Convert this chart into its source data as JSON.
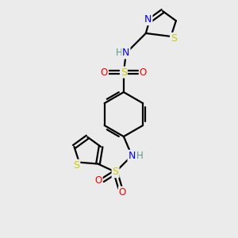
{
  "bg_color": "#ebebeb",
  "atom_colors": {
    "C": "#000000",
    "H": "#5a9a8a",
    "N": "#0000ff",
    "O": "#ff0000",
    "S": "#cccc00"
  },
  "bond_color": "#000000",
  "bond_width": 1.6,
  "figsize": [
    3.0,
    3.0
  ],
  "dpi": 100
}
